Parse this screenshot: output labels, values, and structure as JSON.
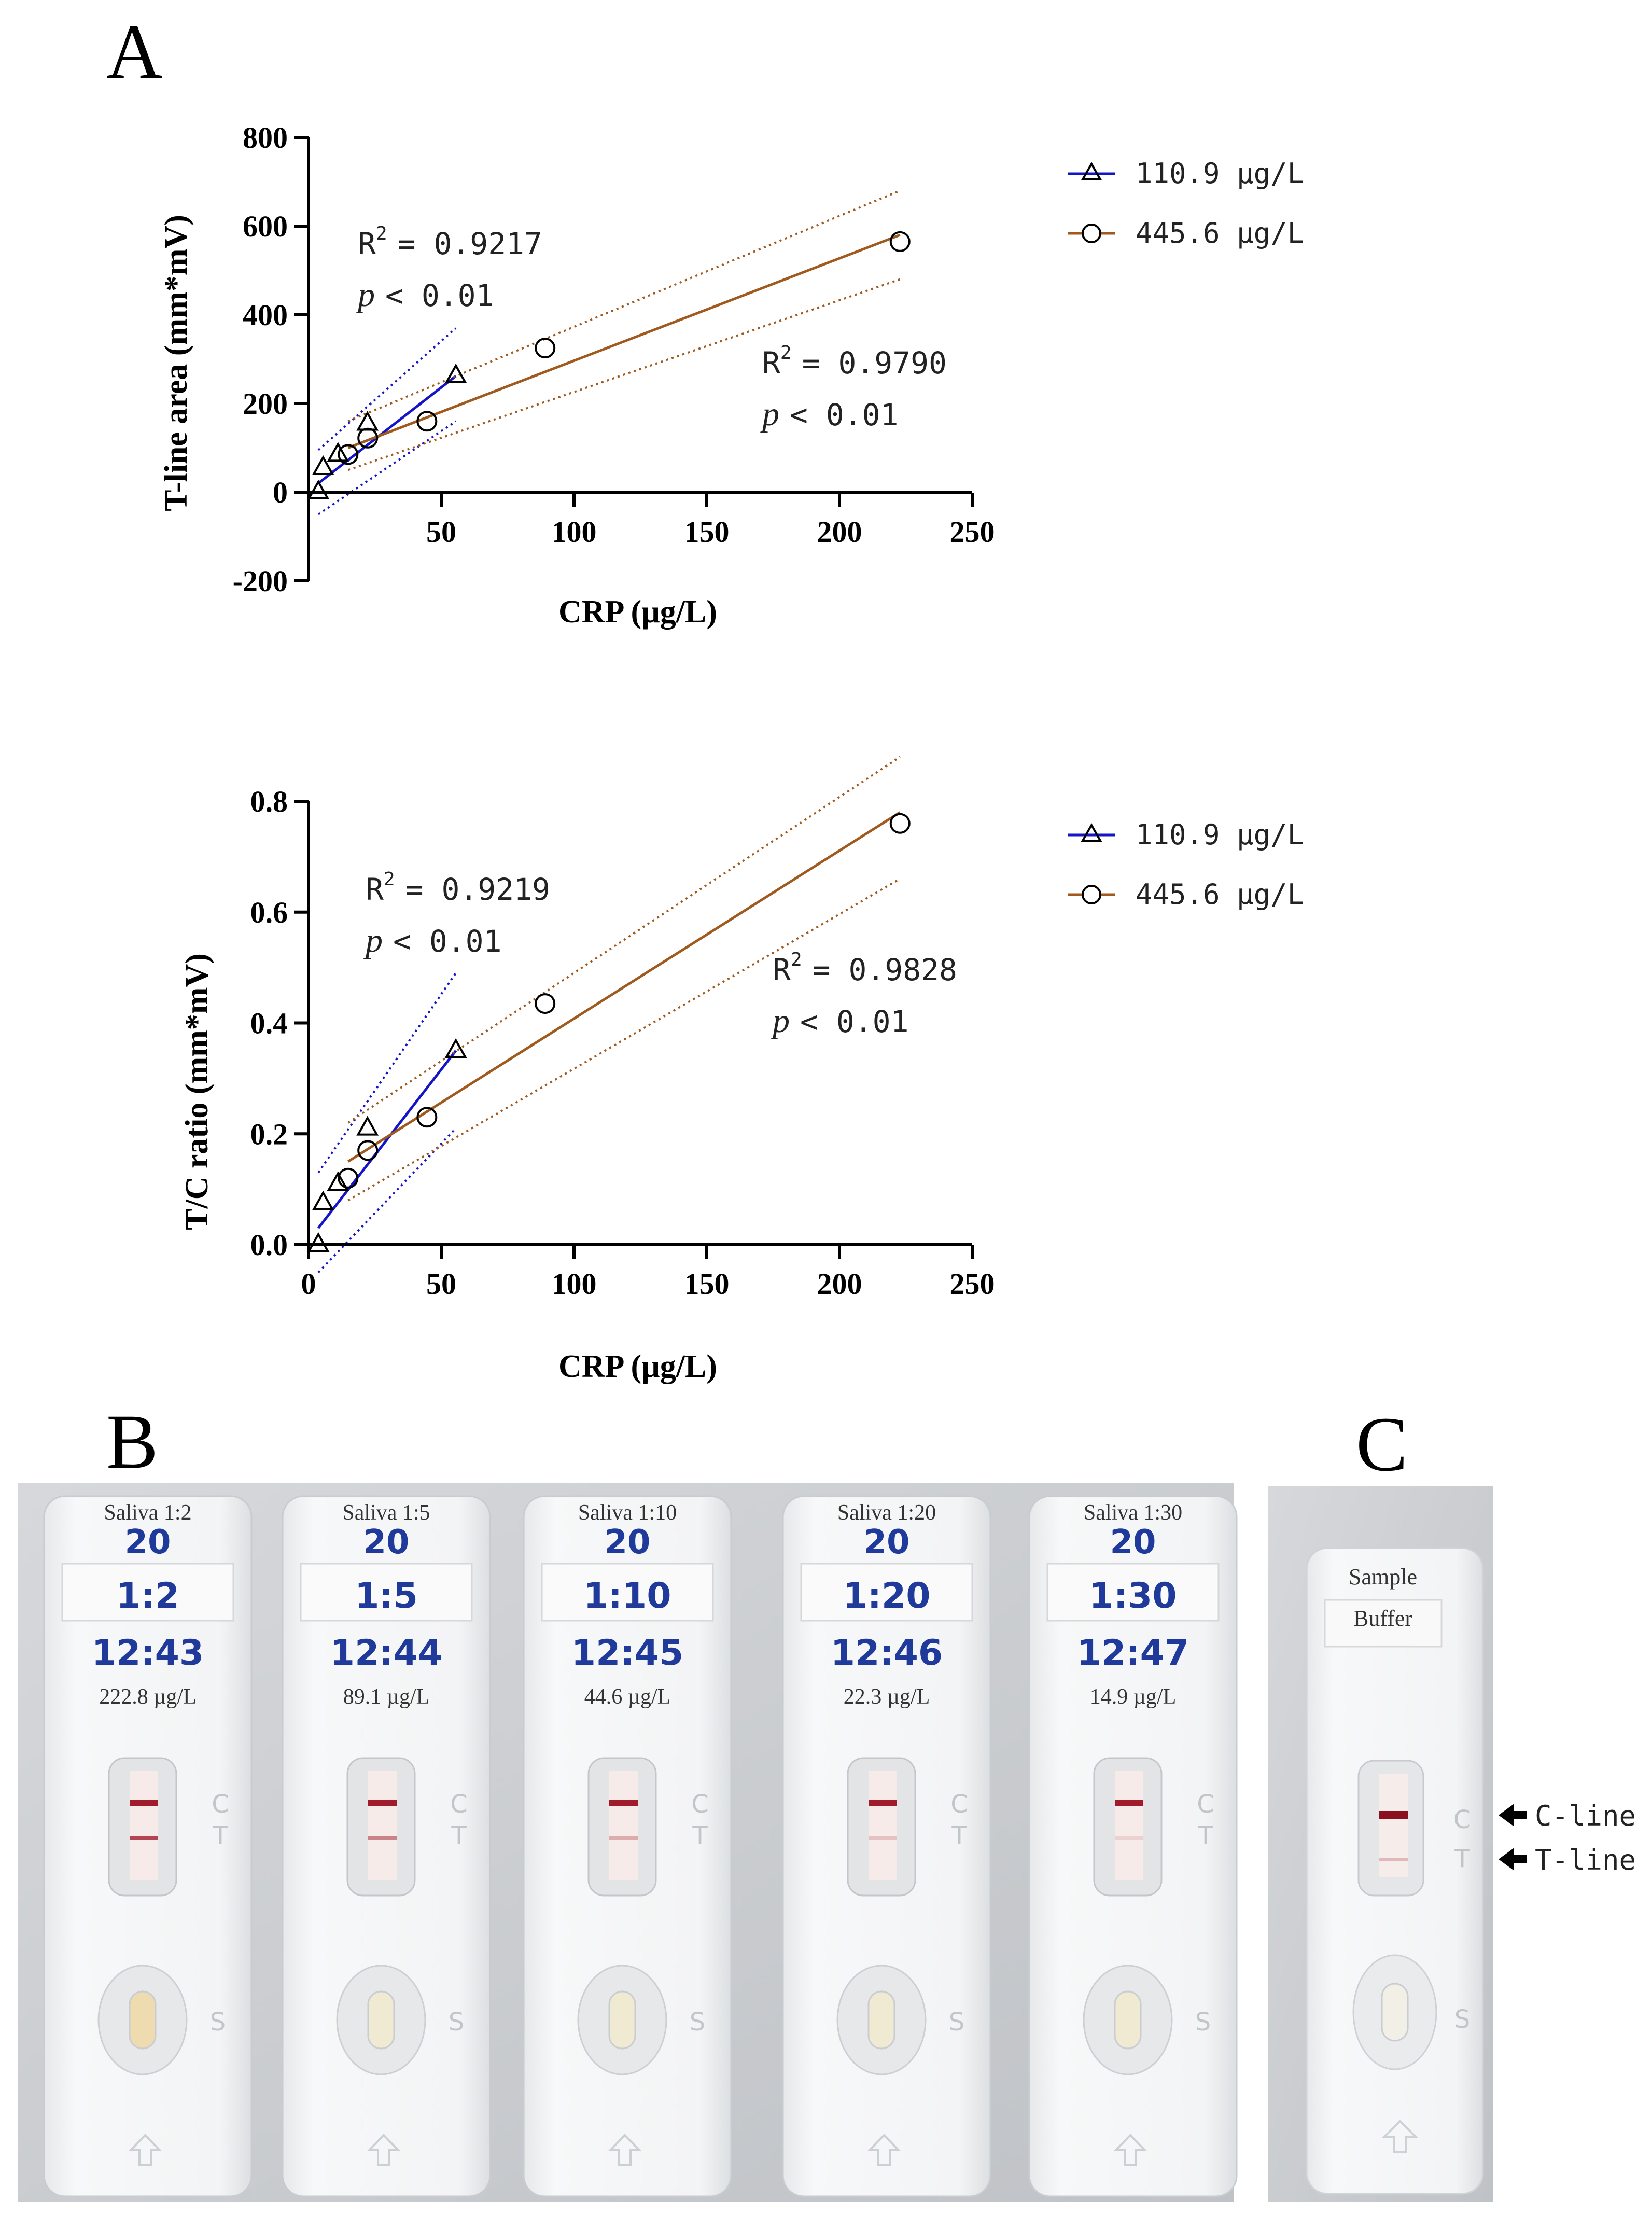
{
  "panel_labels": {
    "a": "A",
    "b": "B",
    "c": "C"
  },
  "legend": {
    "series_a_label": "110.9 µg/L",
    "series_b_label": "445.6 µg/L"
  },
  "colors": {
    "series_a": "#1414c8",
    "series_b": "#a05a1e",
    "axis": "#000000",
    "photo_bg": "#c9ccd0",
    "cassette": "#f4f5f6",
    "line_red": "#a01c2c",
    "ink": "#1f3a9a"
  },
  "chart_data": [
    {
      "type": "scatter",
      "title": "",
      "xlabel": "CRP (µg/L)",
      "ylabel": "T-line area (mm*mV)",
      "xlim": [
        0,
        250
      ],
      "ylim": [
        -200,
        800
      ],
      "xticks": [
        50,
        100,
        150,
        200,
        250
      ],
      "yticks": [
        -200,
        0,
        200,
        400,
        600,
        800
      ],
      "grid": false,
      "legend_position": "outside-right",
      "series": [
        {
          "name": "110.9 µg/L",
          "marker": "triangle",
          "x": [
            3.7,
            5.5,
            11.1,
            22.2,
            55.5
          ],
          "y": [
            0,
            55,
            85,
            155,
            262
          ]
        },
        {
          "name": "445.6 µg/L",
          "marker": "circle",
          "x": [
            14.9,
            22.3,
            44.6,
            89.1,
            222.8
          ],
          "y": [
            85,
            122,
            160,
            325,
            565
          ]
        }
      ],
      "fits": [
        {
          "series": "110.9 µg/L",
          "x_range": [
            3.7,
            55.5
          ],
          "y_range": [
            20,
            262
          ],
          "ci_upper": [
            95,
            370
          ],
          "ci_lower": [
            -50,
            160
          ]
        },
        {
          "series": "445.6 µg/L",
          "x_range": [
            14.9,
            222.8
          ],
          "y_range": [
            100,
            580
          ],
          "ci_upper": [
            160,
            680
          ],
          "ci_lower": [
            50,
            480
          ]
        }
      ],
      "annotations": [
        {
          "r2_text": "R",
          "sup": "2",
          "r2_value": "=  0.9217",
          "p_text": "p",
          "p_value": "< 0.01"
        },
        {
          "r2_text": "R",
          "sup": "2",
          "r2_value": "=  0.9790",
          "p_text": "p",
          "p_value": "< 0.01"
        }
      ]
    },
    {
      "type": "scatter",
      "title": "",
      "xlabel": "CRP (µg/L)",
      "ylabel": "T/C ratio (mm*mV)",
      "xlim": [
        0,
        250
      ],
      "ylim": [
        0,
        0.8
      ],
      "xticks": [
        0,
        50,
        100,
        150,
        200,
        250
      ],
      "yticks": [
        0.0,
        0.2,
        0.4,
        0.6,
        0.8
      ],
      "ytick_labels": [
        "0.0",
        "0.2",
        "0.4",
        "0.6",
        "0.8"
      ],
      "grid": false,
      "legend_position": "outside-right",
      "series": [
        {
          "name": "110.9 µg/L",
          "marker": "triangle",
          "x": [
            3.7,
            5.5,
            11.1,
            22.2,
            55.5
          ],
          "y": [
            0,
            0.075,
            0.11,
            0.21,
            0.35
          ]
        },
        {
          "name": "445.6 µg/L",
          "marker": "circle",
          "x": [
            14.9,
            22.3,
            44.6,
            89.1,
            222.8
          ],
          "y": [
            0.12,
            0.17,
            0.23,
            0.435,
            0.76
          ]
        }
      ],
      "fits": [
        {
          "series": "110.9 µg/L",
          "x_range": [
            3.7,
            55.5
          ],
          "y_range": [
            0.03,
            0.35
          ],
          "ci_upper": [
            0.13,
            0.49
          ],
          "ci_lower": [
            -0.05,
            0.21
          ]
        },
        {
          "series": "445.6 µg/L",
          "x_range": [
            14.9,
            222.8
          ],
          "y_range": [
            0.15,
            0.78
          ],
          "ci_upper": [
            0.22,
            0.88
          ],
          "ci_lower": [
            0.08,
            0.66
          ]
        }
      ],
      "annotations": [
        {
          "r2_text": "R",
          "sup": "2",
          "r2_value": "=  0.9219",
          "p_text": "p",
          "p_value": "< 0.01"
        },
        {
          "r2_text": "R",
          "sup": "2",
          "r2_value": "=  0.9828",
          "p_text": "p",
          "p_value": "< 0.01"
        }
      ]
    }
  ],
  "photo_b": {
    "strips": [
      {
        "title": "Saliva 1:2",
        "ink_top": "20",
        "ink_mid": "1:2",
        "ink_time": "12:43",
        "value": "222.8 µg/L",
        "t_line_strength": 0.8
      },
      {
        "title": "Saliva 1:5",
        "ink_top": "20",
        "ink_mid": "1:5",
        "ink_time": "12:44",
        "value": "89.1 µg/L",
        "t_line_strength": 0.5
      },
      {
        "title": "Saliva 1:10",
        "ink_top": "20",
        "ink_mid": "1:10",
        "ink_time": "12:45",
        "value": "44.6 µg/L",
        "t_line_strength": 0.3
      },
      {
        "title": "Saliva 1:20",
        "ink_top": "20",
        "ink_mid": "1:20",
        "ink_time": "12:46",
        "value": "22.3 µg/L",
        "t_line_strength": 0.2
      },
      {
        "title": "Saliva 1:30",
        "ink_top": "20",
        "ink_mid": "1:30",
        "ink_time": "12:47",
        "value": "14.9 µg/L",
        "t_line_strength": 0.12
      }
    ],
    "letter_c": "C",
    "letter_t": "T",
    "letter_s": "S"
  },
  "photo_c": {
    "label_line1": "Sample",
    "label_line2": "Buffer",
    "c_line_label": "C-line",
    "t_line_label": "T-line",
    "letter_c": "C",
    "letter_t": "T",
    "letter_s": "S"
  }
}
